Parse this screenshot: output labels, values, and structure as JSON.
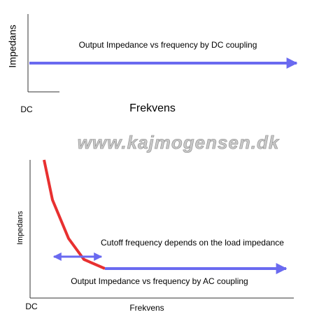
{
  "top_panel": {
    "y_label": "Impedans",
    "annotation": "Output Impedance vs frequency by DC coupling",
    "origin_label": "DC",
    "x_label": "Frekvens"
  },
  "watermark": "www.kajmogensen.dk",
  "bottom_panel": {
    "y_label": "Impedans",
    "cutoff_annotation": "Cutoff frequency depends on the load impedance",
    "annotation": "Output Impedance vs frequency by AC coupling",
    "origin_label": "DC",
    "x_label": "Frekvens"
  }
}
